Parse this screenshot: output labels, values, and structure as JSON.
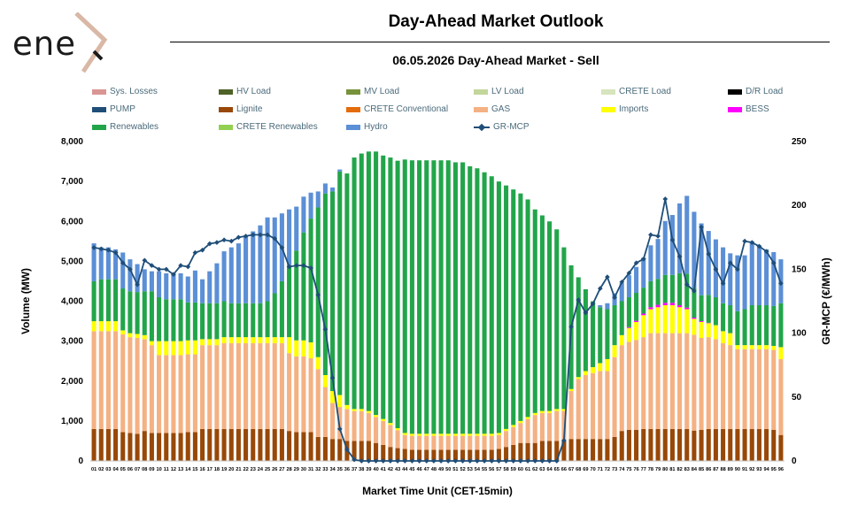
{
  "logo": {
    "text": "ene"
  },
  "header": {
    "title": "Day-Ahead Market Outlook",
    "subtitle": "06.05.2026  Day-Ahead Market - Sell"
  },
  "colors": {
    "sys_losses": "#d99694",
    "hv_load": "#4f6228",
    "mv_load": "#77933c",
    "lv_load": "#c3d69b",
    "crete_load": "#d7e4bd",
    "dr_load": "#000000",
    "pump": "#1f4e79",
    "lignite": "#984807",
    "crete_conv": "#e46c0a",
    "gas": "#f4b183",
    "imports": "#ffff00",
    "bess": "#ff00ff",
    "renewables": "#22a54a",
    "crete_renew": "#92d050",
    "hydro": "#5b8fd6",
    "mcp": "#1f4e79"
  },
  "legend": [
    {
      "label": "Sys. Losses",
      "color": "#d99694"
    },
    {
      "label": "HV Load",
      "color": "#4f6228"
    },
    {
      "label": "MV Load",
      "color": "#77933c"
    },
    {
      "label": "LV Load",
      "color": "#c3d69b"
    },
    {
      "label": "CRETE Load",
      "color": "#d7e4bd"
    },
    {
      "label": "D/R Load",
      "color": "#000000"
    },
    {
      "label": "PUMP",
      "color": "#1f4e79"
    },
    {
      "label": "Lignite",
      "color": "#984807"
    },
    {
      "label": "CRETE Conventional",
      "color": "#e46c0a"
    },
    {
      "label": "GAS",
      "color": "#f4b183"
    },
    {
      "label": "Imports",
      "color": "#ffff00"
    },
    {
      "label": "BESS",
      "color": "#ff00ff"
    },
    {
      "label": "Renewables",
      "color": "#22a54a"
    },
    {
      "label": "CRETE Renewables",
      "color": "#92d050"
    },
    {
      "label": "Hydro",
      "color": "#5b8fd6"
    },
    {
      "label": "GR-MCP",
      "color": "#1f4e79",
      "line": true
    }
  ],
  "chart_data": {
    "type": "bar",
    "title": "06.05.2026  Day-Ahead Market - Sell",
    "xlabel": "Market Time Unit (CET-15min)",
    "ylabel": "Volume (MW)",
    "y2label": "GR-MCP (€/MWh)",
    "ylim": [
      0,
      8000
    ],
    "y2lim": [
      0,
      250
    ],
    "yticks": [
      "0",
      "1,000",
      "2,000",
      "3,000",
      "4,000",
      "5,000",
      "6,000",
      "7,000",
      "8,000"
    ],
    "y2ticks": [
      "0",
      "50",
      "100",
      "150",
      "200",
      "250"
    ],
    "categories": [
      "01",
      "02",
      "03",
      "04",
      "05",
      "06",
      "07",
      "08",
      "09",
      "10",
      "11",
      "12",
      "13",
      "14",
      "15",
      "16",
      "17",
      "18",
      "19",
      "20",
      "21",
      "22",
      "23",
      "24",
      "25",
      "26",
      "27",
      "28",
      "29",
      "30",
      "31",
      "32",
      "33",
      "34",
      "35",
      "36",
      "37",
      "38",
      "39",
      "40",
      "41",
      "42",
      "43",
      "44",
      "45",
      "46",
      "47",
      "48",
      "49",
      "50",
      "51",
      "52",
      "53",
      "54",
      "55",
      "56",
      "57",
      "58",
      "59",
      "60",
      "61",
      "62",
      "63",
      "64",
      "65",
      "66",
      "67",
      "68",
      "69",
      "70",
      "71",
      "72",
      "73",
      "74",
      "75",
      "76",
      "77",
      "78",
      "79",
      "80",
      "81",
      "82",
      "83",
      "84",
      "85",
      "86",
      "87",
      "88",
      "89",
      "90",
      "91",
      "92",
      "93",
      "94",
      "95",
      "96"
    ],
    "series": [
      {
        "name": "Lignite",
        "values": [
          800,
          800,
          800,
          800,
          720,
          700,
          680,
          750,
          700,
          700,
          700,
          700,
          700,
          720,
          720,
          800,
          800,
          800,
          800,
          800,
          800,
          800,
          800,
          800,
          800,
          800,
          800,
          750,
          720,
          720,
          720,
          600,
          600,
          550,
          550,
          500,
          500,
          500,
          500,
          450,
          400,
          350,
          320,
          300,
          280,
          280,
          280,
          280,
          280,
          280,
          280,
          280,
          280,
          280,
          280,
          280,
          300,
          350,
          400,
          450,
          450,
          450,
          500,
          500,
          500,
          500,
          550,
          550,
          550,
          550,
          550,
          550,
          600,
          750,
          780,
          780,
          800,
          800,
          800,
          800,
          800,
          800,
          800,
          760,
          780,
          800,
          800,
          800,
          800,
          800,
          800,
          800,
          800,
          800,
          780,
          650
        ]
      },
      {
        "name": "GAS",
        "values": [
          2450,
          2450,
          2450,
          2450,
          2450,
          2400,
          2400,
          2300,
          2200,
          1950,
          1950,
          1950,
          1950,
          1950,
          1950,
          2100,
          2100,
          2100,
          2150,
          2150,
          2150,
          2150,
          2150,
          2150,
          2150,
          2150,
          2150,
          1950,
          1900,
          1900,
          1850,
          1700,
          1250,
          900,
          800,
          800,
          750,
          750,
          700,
          650,
          600,
          550,
          450,
          350,
          350,
          350,
          350,
          350,
          350,
          350,
          350,
          350,
          350,
          350,
          350,
          350,
          350,
          400,
          450,
          500,
          600,
          700,
          700,
          700,
          750,
          750,
          1200,
          1500,
          1600,
          1650,
          1700,
          1700,
          2000,
          2150,
          2200,
          2250,
          2300,
          2400,
          2400,
          2400,
          2400,
          2400,
          2400,
          2400,
          2300,
          2300,
          2250,
          2150,
          2100,
          2000,
          2000,
          2000,
          2000,
          2000,
          2000,
          1900
        ]
      },
      {
        "name": "Imports",
        "values": [
          250,
          250,
          250,
          250,
          100,
          100,
          100,
          100,
          100,
          350,
          350,
          350,
          350,
          350,
          350,
          150,
          150,
          150,
          150,
          150,
          150,
          150,
          150,
          150,
          150,
          150,
          150,
          400,
          400,
          400,
          400,
          300,
          300,
          300,
          300,
          100,
          50,
          50,
          50,
          50,
          50,
          50,
          50,
          50,
          50,
          50,
          50,
          50,
          50,
          50,
          50,
          50,
          50,
          50,
          50,
          50,
          50,
          50,
          50,
          50,
          50,
          50,
          50,
          50,
          50,
          50,
          50,
          50,
          100,
          150,
          200,
          300,
          300,
          250,
          350,
          450,
          550,
          600,
          650,
          700,
          700,
          650,
          600,
          400,
          400,
          350,
          350,
          300,
          300,
          100,
          100,
          100,
          100,
          100,
          100,
          300
        ]
      },
      {
        "name": "BESS",
        "values": [
          0,
          0,
          0,
          0,
          0,
          0,
          0,
          0,
          0,
          0,
          0,
          0,
          0,
          0,
          0,
          0,
          0,
          0,
          0,
          0,
          0,
          0,
          0,
          0,
          0,
          0,
          0,
          0,
          0,
          0,
          0,
          0,
          0,
          0,
          0,
          0,
          0,
          0,
          0,
          0,
          0,
          0,
          0,
          0,
          0,
          0,
          0,
          0,
          0,
          0,
          0,
          0,
          0,
          0,
          0,
          0,
          0,
          0,
          0,
          0,
          0,
          0,
          0,
          0,
          0,
          0,
          0,
          0,
          0,
          0,
          0,
          0,
          0,
          0,
          20,
          30,
          40,
          50,
          60,
          60,
          60,
          50,
          40,
          30,
          20,
          10,
          0,
          0,
          0,
          0,
          0,
          0,
          0,
          0,
          0,
          0
        ]
      },
      {
        "name": "Renewables",
        "values": [
          1000,
          1050,
          1050,
          1050,
          1050,
          1050,
          1050,
          1100,
          1250,
          1100,
          1050,
          1050,
          1050,
          950,
          950,
          900,
          900,
          900,
          900,
          850,
          850,
          850,
          850,
          850,
          900,
          1100,
          1400,
          1800,
          2250,
          2700,
          3100,
          3750,
          4550,
          5000,
          5600,
          5800,
          6300,
          6400,
          6500,
          6600,
          6600,
          6650,
          6700,
          6850,
          6850,
          6850,
          6850,
          6850,
          6850,
          6850,
          6800,
          6800,
          6700,
          6650,
          6550,
          6450,
          6300,
          6100,
          5900,
          5700,
          5450,
          5100,
          4900,
          4750,
          4500,
          4050,
          3100,
          2500,
          2050,
          1650,
          1400,
          1250,
          1000,
          850,
          750,
          700,
          650,
          650,
          650,
          700,
          700,
          800,
          850,
          750,
          650,
          700,
          700,
          700,
          700,
          850,
          900,
          1000,
          1000,
          1000,
          1000,
          1100
        ]
      },
      {
        "name": "Hydro",
        "values": [
          950,
          800,
          800,
          750,
          900,
          800,
          700,
          550,
          500,
          650,
          650,
          650,
          650,
          650,
          800,
          600,
          800,
          1000,
          1250,
          1400,
          1500,
          1700,
          1800,
          1950,
          2100,
          1900,
          1700,
          1400,
          1100,
          900,
          650,
          400,
          250,
          100,
          50,
          0,
          0,
          0,
          0,
          0,
          0,
          0,
          0,
          0,
          0,
          0,
          0,
          0,
          0,
          0,
          0,
          0,
          0,
          0,
          0,
          0,
          0,
          0,
          0,
          0,
          0,
          0,
          0,
          0,
          0,
          0,
          0,
          0,
          0,
          0,
          50,
          150,
          300,
          450,
          550,
          650,
          750,
          900,
          1000,
          1350,
          1500,
          1750,
          1950,
          1900,
          1800,
          1600,
          1450,
          1400,
          1300,
          1400,
          1350,
          1600,
          1500,
          1400,
          1350,
          1100
        ]
      }
    ],
    "mcp": {
      "name": "GR-MCP",
      "values": [
        167,
        166,
        165,
        163,
        155,
        150,
        138,
        157,
        153,
        150,
        150,
        146,
        153,
        152,
        163,
        165,
        170,
        171,
        173,
        172,
        175,
        176,
        177,
        177,
        177,
        174,
        167,
        152,
        153,
        153,
        151,
        130,
        103,
        65,
        25,
        9,
        1,
        0,
        0,
        0,
        0,
        0,
        0,
        0,
        0,
        0,
        0,
        0,
        0,
        0,
        0,
        0,
        0,
        0,
        0,
        0,
        0,
        0,
        0,
        0,
        0,
        0,
        0,
        0,
        0,
        16,
        105,
        126,
        116,
        123,
        135,
        144,
        128,
        140,
        147,
        155,
        158,
        177,
        176,
        205,
        173,
        160,
        138,
        133,
        183,
        162,
        150,
        139,
        155,
        150,
        172,
        171,
        168,
        164,
        155,
        139
      ]
    }
  }
}
